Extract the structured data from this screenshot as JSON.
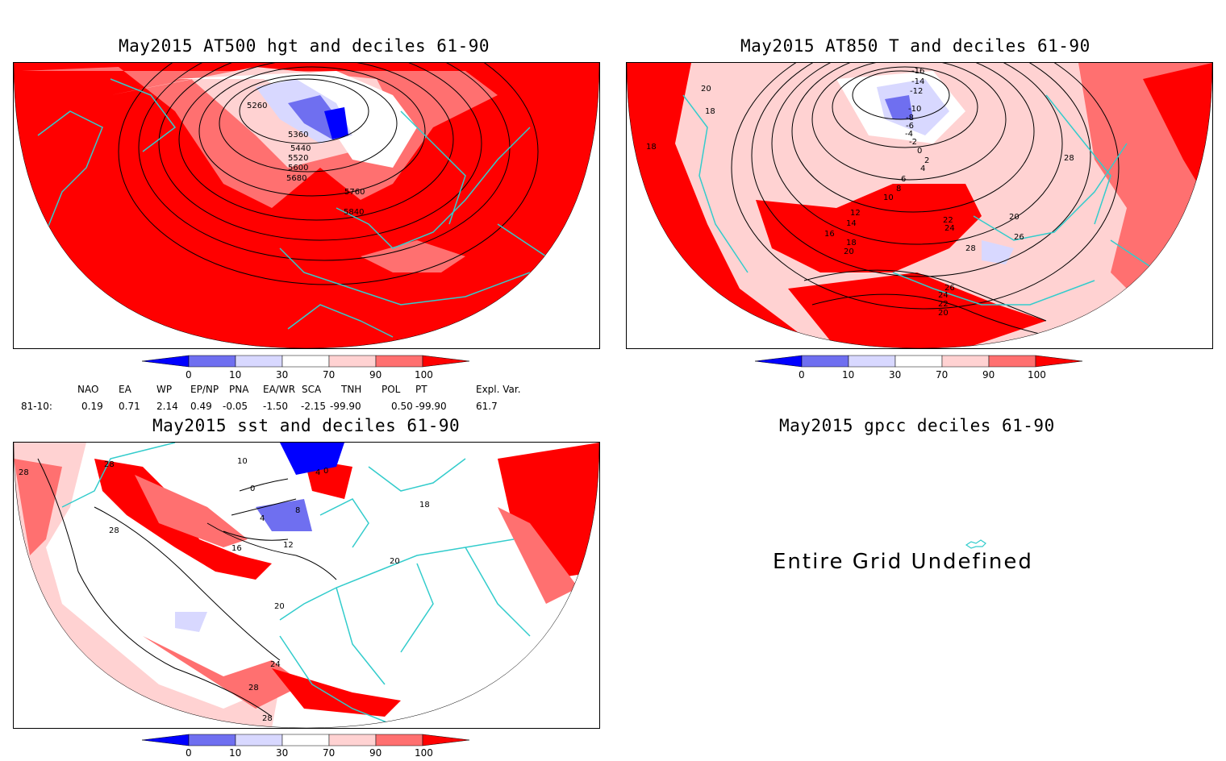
{
  "panels": {
    "z500": {
      "title": "May2015 AT500 hgt and deciles 61-90",
      "contour_labels": [
        "5260",
        "5360",
        "5440",
        "5520",
        "5600",
        "5680",
        "5760",
        "5840"
      ]
    },
    "t850": {
      "title": "May2015 AT850 T and deciles 61-90",
      "contour_labels": [
        "-16",
        "-14",
        "-12",
        "-10",
        "-8",
        "-6",
        "-4",
        "-2",
        "0",
        "2",
        "4",
        "6",
        "8",
        "10",
        "12",
        "14",
        "16",
        "18",
        "20",
        "22",
        "24",
        "26",
        "28",
        "18",
        "18",
        "20",
        "20",
        "28",
        "20",
        "22",
        "24",
        "26"
      ]
    },
    "sst": {
      "title": "May2015 sst and deciles 61-90",
      "contour_labels": [
        "28",
        "28",
        "28",
        "10",
        "0",
        "4",
        "8",
        "12",
        "16",
        "20",
        "24",
        "28",
        "28",
        "4",
        "0",
        "18",
        "20"
      ]
    },
    "gpcc": {
      "title": "May2015 gpcc deciles 61-90",
      "message": "Entire Grid Undefined"
    }
  },
  "colorbar": {
    "labels": [
      "0",
      "10",
      "30",
      "70",
      "90",
      "100"
    ],
    "colors": [
      "#0000ff",
      "#6f6ff0",
      "#d8d8ff",
      "#ffffff",
      "#ffd2d2",
      "#ff7070",
      "#ff0000"
    ]
  },
  "indices": {
    "headers": [
      "NAO",
      "EA",
      "WP",
      "EP/NP",
      "PNA",
      "EA/WR",
      "SCA",
      "TNH",
      "POL",
      "PT",
      "Expl. Var."
    ],
    "row_label": "81-10:",
    "values": [
      "0.19",
      "0.71",
      "2.14",
      "0.49",
      "-0.05",
      "-1.50",
      "-2.15",
      "-99.90",
      "0.50",
      "-99.90",
      "61.7"
    ]
  }
}
